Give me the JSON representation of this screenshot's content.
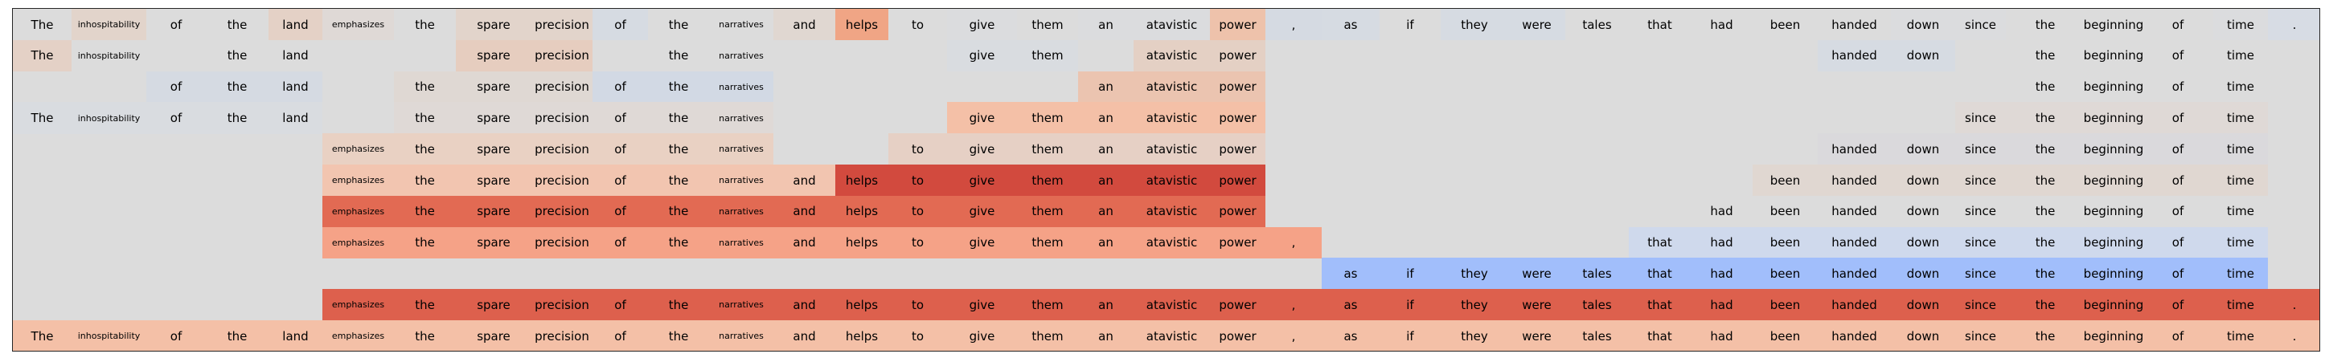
{
  "tokens": [
    "The",
    "inhospitability",
    "of",
    "the",
    "land",
    "emphasizes",
    "the",
    "spare",
    "precision",
    "of",
    "the",
    "narratives",
    "and",
    "helps",
    "to",
    "give",
    "them",
    "an",
    "atavistic",
    "power",
    ",",
    "as",
    "if",
    "they",
    "were",
    "tales",
    "that",
    "had",
    "been",
    "handed",
    "down",
    "since",
    "the",
    "beginning",
    "of",
    "time",
    "."
  ],
  "small_tokens": [
    "inhospitability",
    "emphasizes",
    "narratives"
  ],
  "colors": {
    "background": "#dcdcdc",
    "border": "#262626"
  },
  "rows": [
    {
      "present": [
        0,
        1,
        2,
        3,
        4,
        5,
        6,
        7,
        8,
        9,
        10,
        11,
        12,
        13,
        14,
        15,
        16,
        17,
        18,
        19,
        20,
        21,
        22,
        23,
        24,
        25,
        26,
        27,
        28,
        29,
        30,
        31,
        32,
        33,
        34,
        35,
        36
      ],
      "colors": {
        "0": "#dcdcdc",
        "1": "#e2d4cb",
        "2": "#dcdcdc",
        "3": "#dcdcdc",
        "4": "#e4d1c6",
        "5": "#dfd9d6",
        "6": "#dcdcdc",
        "7": "#e2d4cb",
        "8": "#e2d4cb",
        "9": "#d6dbe2",
        "10": "#dcdcdc",
        "11": "#dcdcdc",
        "12": "#e0d7d1",
        "13": "#f0a585",
        "14": "#dcdcdc",
        "15": "#dbdcde",
        "16": "#dcdcdc",
        "17": "#dbdcde",
        "18": "#dbdcde",
        "19": "#eec2ab",
        "20": "#d5dae2",
        "21": "#d6dbe2",
        "22": "#dcdcdc",
        "23": "#d6dbe2",
        "24": "#d6dbe2",
        "25": "#dcdcdc",
        "26": "#dcdcdc",
        "27": "#dcdcdc",
        "28": "#dcdcdc",
        "29": "#dcdcdc",
        "30": "#dbdcde",
        "31": "#dbdcde",
        "32": "#dcdcdc",
        "33": "#dcdcdc",
        "34": "#dcdcdc",
        "35": "#dbdcde",
        "36": "#d7dce4"
      }
    },
    {
      "present": [
        0,
        1,
        3,
        4,
        7,
        8,
        10,
        11,
        15,
        16,
        18,
        19,
        29,
        30,
        32,
        33,
        34,
        35
      ],
      "colors": {
        "0": "#e4d1c6",
        "1": "#dcdcdc",
        "3": "#dcdcdc",
        "4": "#dcdcdc",
        "7": "#e6cdbf",
        "8": "#e6cdbf",
        "10": "#dcdcdc",
        "11": "#dcdcdc",
        "15": "#d9dce0",
        "16": "#d9dce0",
        "18": "#e4d0c4",
        "19": "#e4d0c4",
        "29": "#d6dbe2",
        "30": "#d6dbe2",
        "32": "#dcdcdc",
        "33": "#dcdcdc",
        "34": "#dcdcdc",
        "35": "#dcdcdc"
      }
    },
    {
      "present": [
        2,
        3,
        4,
        6,
        7,
        8,
        9,
        10,
        11,
        17,
        18,
        19,
        32,
        33,
        34,
        35
      ],
      "colors": {
        "2": "#d5dae2",
        "3": "#d5dae2",
        "4": "#d5dae2",
        "6": "#dfd8d3",
        "7": "#dfd8d3",
        "8": "#dfd8d3",
        "9": "#d2d9e4",
        "10": "#d2d9e4",
        "11": "#d2d9e4",
        "17": "#ebc4b0",
        "18": "#ebc4b0",
        "19": "#ebc4b0",
        "32": "#dcdcdc",
        "33": "#dcdcdc",
        "34": "#dcdcdc",
        "35": "#dcdcdc"
      }
    },
    {
      "present": [
        0,
        1,
        2,
        3,
        4,
        6,
        7,
        8,
        9,
        10,
        11,
        15,
        16,
        17,
        18,
        19,
        31,
        32,
        33,
        34,
        35
      ],
      "colors": {
        "0": "#d9dce0",
        "1": "#d9dce0",
        "2": "#d9dce0",
        "3": "#d9dce0",
        "4": "#d9dce0",
        "6": "#dfd9d6",
        "7": "#dfd9d6",
        "8": "#dfd9d6",
        "9": "#dfd9d6",
        "10": "#dfd9d6",
        "11": "#dfd9d6",
        "15": "#f4c0a7",
        "16": "#f4c0a7",
        "17": "#f4c0a7",
        "18": "#f4c0a7",
        "19": "#f4c0a7",
        "31": "#dfd9d6",
        "32": "#dfd9d6",
        "33": "#dfd9d6",
        "34": "#dfd9d6",
        "35": "#dfd9d6"
      }
    },
    {
      "present": [
        5,
        6,
        7,
        8,
        9,
        10,
        11,
        14,
        15,
        16,
        17,
        18,
        19,
        29,
        30,
        31,
        32,
        33,
        34,
        35
      ],
      "colors": {
        "5": "#e9d1c3",
        "6": "#e9d1c3",
        "7": "#e9d1c3",
        "8": "#e9d1c3",
        "9": "#e9d1c3",
        "10": "#e9d1c3",
        "11": "#e9d1c3",
        "14": "#e6d0c5",
        "15": "#e6d0c5",
        "16": "#e6d0c5",
        "17": "#e6d0c5",
        "18": "#e6d0c5",
        "19": "#e6d0c5",
        "29": "#dad9dc",
        "30": "#dad9dc",
        "31": "#dad9dc",
        "32": "#dad9dc",
        "33": "#dad9dc",
        "34": "#dad9dc",
        "35": "#dad9dc"
      }
    },
    {
      "present": [
        5,
        6,
        7,
        8,
        9,
        10,
        11,
        12,
        13,
        14,
        15,
        16,
        17,
        18,
        19,
        28,
        29,
        30,
        31,
        32,
        33,
        34,
        35
      ],
      "colors": {
        "5": "#f2c5b0",
        "6": "#f2c5b0",
        "7": "#f2c5b0",
        "8": "#f2c5b0",
        "9": "#f2c5b0",
        "10": "#f2c5b0",
        "11": "#f2c5b0",
        "12": "#f2c5b0",
        "13": "#d24a3e",
        "14": "#d24a3e",
        "15": "#d24a3e",
        "16": "#d24a3e",
        "17": "#d24a3e",
        "18": "#d24a3e",
        "19": "#d24a3e",
        "28": "#e0d7d1",
        "29": "#e0d7d1",
        "30": "#e0d7d1",
        "31": "#e0d7d1",
        "32": "#e0d7d1",
        "33": "#e0d7d1",
        "34": "#e0d7d1",
        "35": "#e0d7d1"
      }
    },
    {
      "present": [
        5,
        6,
        7,
        8,
        9,
        10,
        11,
        12,
        13,
        14,
        15,
        16,
        17,
        18,
        19,
        27,
        28,
        29,
        30,
        31,
        32,
        33,
        34,
        35
      ],
      "colors": {
        "5": "#e26a53",
        "6": "#e26a53",
        "7": "#e26a53",
        "8": "#e26a53",
        "9": "#e26a53",
        "10": "#e26a53",
        "11": "#e26a53",
        "12": "#e26a53",
        "13": "#e26a53",
        "14": "#e26a53",
        "15": "#e26a53",
        "16": "#e26a53",
        "17": "#e26a53",
        "18": "#e26a53",
        "19": "#e26a53",
        "27": "#dcdcdc",
        "28": "#dcdcdc",
        "29": "#dcdcdc",
        "30": "#dcdcdc",
        "31": "#dcdcdc",
        "32": "#dcdcdc",
        "33": "#dcdcdc",
        "34": "#dcdcdc",
        "35": "#dcdcdc"
      }
    },
    {
      "present": [
        5,
        6,
        7,
        8,
        9,
        10,
        11,
        12,
        13,
        14,
        15,
        16,
        17,
        18,
        19,
        20,
        26,
        27,
        28,
        29,
        30,
        31,
        32,
        33,
        34,
        35
      ],
      "colors": {
        "5": "#f5a287",
        "6": "#f5a287",
        "7": "#f5a287",
        "8": "#f5a287",
        "9": "#f5a287",
        "10": "#f5a287",
        "11": "#f5a287",
        "12": "#f5a287",
        "13": "#f5a287",
        "14": "#f5a287",
        "15": "#f5a287",
        "16": "#f5a287",
        "17": "#f5a287",
        "18": "#f5a287",
        "19": "#f5a287",
        "20": "#f5a287",
        "26": "#cfd9ec",
        "27": "#cfd9ec",
        "28": "#cfd9ec",
        "29": "#cfd9ec",
        "30": "#cfd9ec",
        "31": "#cfd9ec",
        "32": "#cfd9ec",
        "33": "#cfd9ec",
        "34": "#cfd9ec",
        "35": "#cfd9ec"
      }
    },
    {
      "present": [
        21,
        22,
        23,
        24,
        25,
        26,
        27,
        28,
        29,
        30,
        31,
        32,
        33,
        34,
        35
      ],
      "colors": {
        "21": "#a1befb",
        "22": "#a1befb",
        "23": "#a1befb",
        "24": "#a1befb",
        "25": "#a1befb",
        "26": "#a1befb",
        "27": "#a1befb",
        "28": "#a1befb",
        "29": "#a1befb",
        "30": "#a1befb",
        "31": "#a1befb",
        "32": "#a1befb",
        "33": "#a1befb",
        "34": "#a1befb",
        "35": "#a1befb"
      }
    },
    {
      "present": [
        5,
        6,
        7,
        8,
        9,
        10,
        11,
        12,
        13,
        14,
        15,
        16,
        17,
        18,
        19,
        20,
        21,
        22,
        23,
        24,
        25,
        26,
        27,
        28,
        29,
        30,
        31,
        32,
        33,
        34,
        35,
        36
      ],
      "colors": {
        "5": "#dd604d",
        "6": "#dd604d",
        "7": "#dd604d",
        "8": "#dd604d",
        "9": "#dd604d",
        "10": "#dd604d",
        "11": "#dd604d",
        "12": "#dd604d",
        "13": "#dd604d",
        "14": "#dd604d",
        "15": "#dd604d",
        "16": "#dd604d",
        "17": "#dd604d",
        "18": "#dd604d",
        "19": "#dd604d",
        "20": "#dd604d",
        "21": "#dd604d",
        "22": "#dd604d",
        "23": "#dd604d",
        "24": "#dd604d",
        "25": "#dd604d",
        "26": "#dd604d",
        "27": "#dd604d",
        "28": "#dd604d",
        "29": "#dd604d",
        "30": "#dd604d",
        "31": "#dd604d",
        "32": "#dd604d",
        "33": "#dd604d",
        "34": "#dd604d",
        "35": "#dd604d",
        "36": "#dd604d"
      }
    },
    {
      "present": [
        0,
        1,
        2,
        3,
        4,
        5,
        6,
        7,
        8,
        9,
        10,
        11,
        12,
        13,
        14,
        15,
        16,
        17,
        18,
        19,
        20,
        21,
        22,
        23,
        24,
        25,
        26,
        27,
        28,
        29,
        30,
        31,
        32,
        33,
        34,
        35,
        36
      ],
      "colors": {
        "0": "#f4c0a7",
        "1": "#f4c0a7",
        "2": "#f4c0a7",
        "3": "#f4c0a7",
        "4": "#f4c0a7",
        "5": "#f4c0a7",
        "6": "#f4c0a7",
        "7": "#f4c0a7",
        "8": "#f4c0a7",
        "9": "#f4c0a7",
        "10": "#f4c0a7",
        "11": "#f4c0a7",
        "12": "#f4c0a7",
        "13": "#f4c0a7",
        "14": "#f4c0a7",
        "15": "#f4c0a7",
        "16": "#f4c0a7",
        "17": "#f4c0a7",
        "18": "#f4c0a7",
        "19": "#f4c0a7",
        "20": "#f4c0a7",
        "21": "#f4c0a7",
        "22": "#f4c0a7",
        "23": "#f4c0a7",
        "24": "#f4c0a7",
        "25": "#f4c0a7",
        "26": "#f4c0a7",
        "27": "#f4c0a7",
        "28": "#f4c0a7",
        "29": "#f4c0a7",
        "30": "#f4c0a7",
        "31": "#f4c0a7",
        "32": "#f4c0a7",
        "33": "#f4c0a7",
        "34": "#f4c0a7",
        "35": "#f4c0a7",
        "36": "#f4c0a7"
      }
    }
  ]
}
